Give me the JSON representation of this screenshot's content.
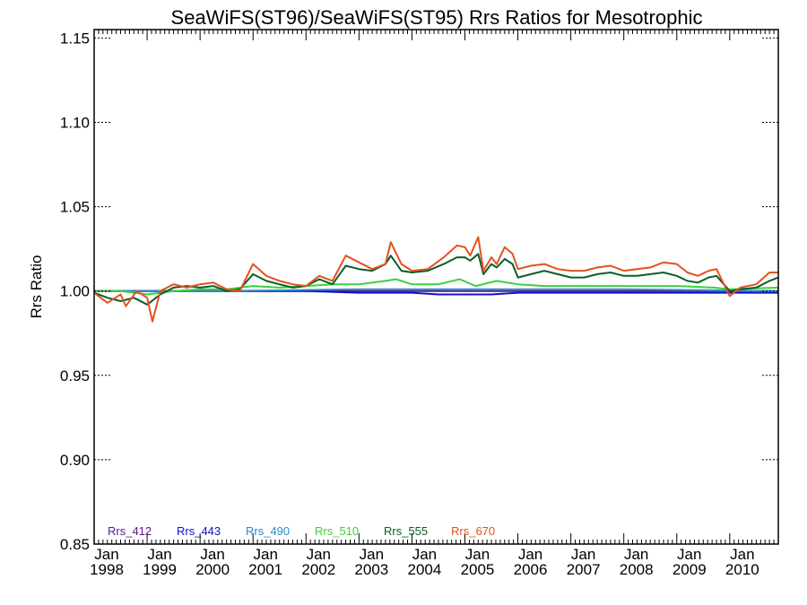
{
  "chart_data": {
    "type": "line",
    "title": "SeaWiFS(ST96)/SeaWiFS(ST95)  Rrs Ratios for Mesotrophic",
    "xlabel": "",
    "ylabel": "Rrs Ratio",
    "xlim": [
      1998.0,
      2010.917
    ],
    "ylim": [
      0.85,
      1.155
    ],
    "y_ticks": [
      0.85,
      0.9,
      0.95,
      1.0,
      1.05,
      1.1,
      1.15
    ],
    "y_tick_labels": [
      "0.85",
      "0.90",
      "0.95",
      "1.00",
      "1.05",
      "1.10",
      "1.15"
    ],
    "x_ticks": [
      1998,
      1999,
      2000,
      2001,
      2002,
      2003,
      2004,
      2005,
      2006,
      2007,
      2008,
      2009,
      2010
    ],
    "x_tick_labels": [
      [
        "Jan",
        "1998"
      ],
      [
        "Jan",
        "1999"
      ],
      [
        "Jan",
        "2000"
      ],
      [
        "Jan",
        "2001"
      ],
      [
        "Jan",
        "2002"
      ],
      [
        "Jan",
        "2003"
      ],
      [
        "Jan",
        "2004"
      ],
      [
        "Jan",
        "2005"
      ],
      [
        "Jan",
        "2006"
      ],
      [
        "Jan",
        "2007"
      ],
      [
        "Jan",
        "2008"
      ],
      [
        "Jan",
        "2009"
      ],
      [
        "Jan",
        "2010"
      ]
    ],
    "reference_line": 1.0,
    "legend_position": "bottom-left",
    "series": [
      {
        "name": "Rrs_412",
        "color": "#5a1a8c",
        "x": [
          1998.0,
          2000.5,
          2003.0,
          2005.0,
          2008.0,
          2010.917
        ],
        "y": [
          1.0,
          1.0,
          1.0,
          1.0,
          1.0,
          1.0
        ]
      },
      {
        "name": "Rrs_443",
        "color": "#1010cc",
        "x": [
          1998.0,
          2000.5,
          2002.0,
          2003.0,
          2004.0,
          2004.5,
          2005.0,
          2005.5,
          2006.0,
          2007.0,
          2008.0,
          2009.0,
          2010.0,
          2010.917
        ],
        "y": [
          1.0,
          1.0,
          1.0,
          0.999,
          0.999,
          0.998,
          0.998,
          0.998,
          0.999,
          0.999,
          0.999,
          0.999,
          0.999,
          0.999
        ]
      },
      {
        "name": "Rrs_490",
        "color": "#2e8bc8",
        "x": [
          1998.0,
          2000.5,
          2003.0,
          2005.0,
          2008.0,
          2010.917
        ],
        "y": [
          1.0,
          1.0,
          1.001,
          1.001,
          1.001,
          1.0
        ]
      },
      {
        "name": "Rrs_510",
        "color": "#3fcf3f",
        "x": [
          1998.0,
          1998.5,
          1999.0,
          1999.5,
          2000.0,
          2000.5,
          2001.0,
          2001.5,
          2002.0,
          2002.5,
          2003.0,
          2003.5,
          2003.7,
          2004.0,
          2004.5,
          2004.9,
          2005.2,
          2005.6,
          2006.0,
          2006.5,
          2007.0,
          2008.0,
          2009.0,
          2009.7,
          2010.0,
          2010.917
        ],
        "y": [
          1.0,
          1.0,
          0.998,
          1.0,
          1.001,
          1.001,
          1.003,
          1.002,
          1.003,
          1.004,
          1.004,
          1.006,
          1.007,
          1.004,
          1.004,
          1.007,
          1.003,
          1.006,
          1.004,
          1.003,
          1.003,
          1.003,
          1.003,
          1.002,
          1.001,
          1.002
        ]
      },
      {
        "name": "Rrs_555",
        "color": "#0b5e2a",
        "x": [
          1998.0,
          1998.25,
          1998.5,
          1998.75,
          1999.0,
          1999.25,
          1999.5,
          1999.75,
          2000.0,
          2000.25,
          2000.5,
          2000.75,
          2001.0,
          2001.25,
          2001.5,
          2001.75,
          2002.0,
          2002.25,
          2002.5,
          2002.75,
          2003.0,
          2003.25,
          2003.5,
          2003.6,
          2003.8,
          2004.0,
          2004.3,
          2004.6,
          2004.85,
          2005.0,
          2005.1,
          2005.25,
          2005.35,
          2005.5,
          2005.6,
          2005.75,
          2005.9,
          2006.0,
          2006.25,
          2006.5,
          2006.75,
          2007.0,
          2007.25,
          2007.5,
          2007.75,
          2008.0,
          2008.25,
          2008.5,
          2008.75,
          2009.0,
          2009.2,
          2009.4,
          2009.6,
          2009.75,
          2010.0,
          2010.2,
          2010.5,
          2010.75,
          2010.917
        ],
        "y": [
          0.999,
          0.996,
          0.994,
          0.996,
          0.992,
          0.998,
          1.002,
          1.003,
          1.002,
          1.003,
          1.0,
          1.001,
          1.01,
          1.006,
          1.004,
          1.002,
          1.003,
          1.007,
          1.004,
          1.015,
          1.013,
          1.012,
          1.016,
          1.021,
          1.012,
          1.011,
          1.012,
          1.016,
          1.02,
          1.02,
          1.018,
          1.022,
          1.01,
          1.016,
          1.014,
          1.019,
          1.016,
          1.008,
          1.01,
          1.012,
          1.01,
          1.008,
          1.008,
          1.01,
          1.011,
          1.009,
          1.009,
          1.01,
          1.011,
          1.009,
          1.006,
          1.005,
          1.008,
          1.009,
          1.0,
          1.001,
          1.002,
          1.006,
          1.008
        ]
      },
      {
        "name": "Rrs_670",
        "color": "#e4511e",
        "x": [
          1998.0,
          1998.25,
          1998.5,
          1998.6,
          1998.8,
          1999.0,
          1999.1,
          1999.25,
          1999.5,
          1999.75,
          2000.0,
          2000.25,
          2000.5,
          2000.75,
          2001.0,
          2001.25,
          2001.5,
          2001.75,
          2002.0,
          2002.25,
          2002.5,
          2002.75,
          2003.0,
          2003.25,
          2003.5,
          2003.6,
          2003.8,
          2004.0,
          2004.3,
          2004.6,
          2004.85,
          2005.0,
          2005.1,
          2005.25,
          2005.35,
          2005.5,
          2005.6,
          2005.75,
          2005.9,
          2006.0,
          2006.25,
          2006.5,
          2006.75,
          2007.0,
          2007.25,
          2007.5,
          2007.75,
          2008.0,
          2008.25,
          2008.5,
          2008.75,
          2009.0,
          2009.2,
          2009.4,
          2009.6,
          2009.75,
          2010.0,
          2010.2,
          2010.5,
          2010.75,
          2010.917
        ],
        "y": [
          0.999,
          0.993,
          0.998,
          0.991,
          1.0,
          0.996,
          0.982,
          1.0,
          1.004,
          1.002,
          1.004,
          1.005,
          1.001,
          1.0,
          1.016,
          1.009,
          1.006,
          1.004,
          1.003,
          1.009,
          1.006,
          1.021,
          1.017,
          1.013,
          1.016,
          1.029,
          1.016,
          1.012,
          1.013,
          1.02,
          1.027,
          1.026,
          1.021,
          1.032,
          1.012,
          1.02,
          1.016,
          1.026,
          1.022,
          1.013,
          1.015,
          1.016,
          1.013,
          1.012,
          1.012,
          1.014,
          1.015,
          1.012,
          1.013,
          1.014,
          1.017,
          1.016,
          1.011,
          1.009,
          1.012,
          1.013,
          0.997,
          1.002,
          1.004,
          1.011,
          1.011
        ]
      }
    ]
  }
}
